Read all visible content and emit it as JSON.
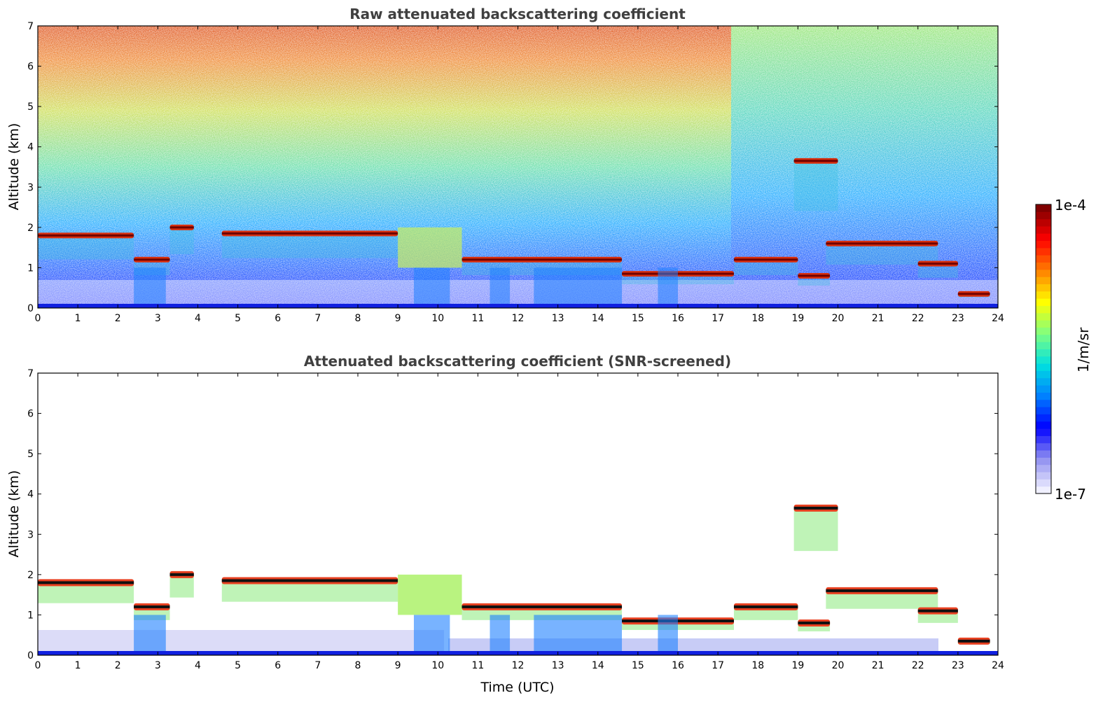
{
  "chart_data": [
    {
      "type": "heatmap",
      "title": "Raw attenuated backscattering coefficient",
      "xlabel": "",
      "ylabel": "Altitude (km)",
      "xlim": [
        0,
        24
      ],
      "ylim": [
        0,
        7
      ],
      "xticks": [
        "0",
        "1",
        "2",
        "3",
        "4",
        "5",
        "6",
        "7",
        "8",
        "9",
        "10",
        "11",
        "12",
        "13",
        "14",
        "15",
        "16",
        "17",
        "18",
        "19",
        "20",
        "21",
        "22",
        "23",
        "24"
      ],
      "yticks": [
        "0",
        "1",
        "2",
        "3",
        "4",
        "5",
        "6",
        "7"
      ],
      "grid": false,
      "cloud_layers": [
        {
          "t_start": 0.0,
          "t_end": 2.4,
          "altitude_km": 1.8
        },
        {
          "t_start": 2.4,
          "t_end": 3.3,
          "altitude_km": 1.2
        },
        {
          "t_start": 3.3,
          "t_end": 3.9,
          "altitude_km": 2.0
        },
        {
          "t_start": 4.6,
          "t_end": 9.0,
          "altitude_km": 1.85
        },
        {
          "t_start": 10.6,
          "t_end": 14.6,
          "altitude_km": 1.2
        },
        {
          "t_start": 14.6,
          "t_end": 17.4,
          "altitude_km": 0.85
        },
        {
          "t_start": 17.4,
          "t_end": 19.0,
          "altitude_km": 1.2
        },
        {
          "t_start": 18.9,
          "t_end": 20.0,
          "altitude_km": 3.65
        },
        {
          "t_start": 19.0,
          "t_end": 19.8,
          "altitude_km": 0.8
        },
        {
          "t_start": 19.7,
          "t_end": 22.5,
          "altitude_km": 1.6
        },
        {
          "t_start": 22.0,
          "t_end": 23.0,
          "altitude_km": 1.1
        },
        {
          "t_start": 23.0,
          "t_end": 23.8,
          "altitude_km": 0.35
        }
      ]
    },
    {
      "type": "heatmap",
      "title": "Attenuated backscattering coefficient (SNR-screened)",
      "xlabel": "Time (UTC)",
      "ylabel": "Altitude (km)",
      "xlim": [
        0,
        24
      ],
      "ylim": [
        0,
        7
      ],
      "xticks": [
        "0",
        "1",
        "2",
        "3",
        "4",
        "5",
        "6",
        "7",
        "8",
        "9",
        "10",
        "11",
        "12",
        "13",
        "14",
        "15",
        "16",
        "17",
        "18",
        "19",
        "20",
        "21",
        "22",
        "23",
        "24"
      ],
      "yticks": [
        "0",
        "1",
        "2",
        "3",
        "4",
        "5",
        "6",
        "7"
      ],
      "grid": false
    }
  ],
  "colorbar": {
    "label": "1/m/sr",
    "max_label": "1e-4",
    "min_label": "1e-7",
    "scale": "log",
    "colors": [
      "#f0f0ff",
      "#9090f0",
      "#0000ff",
      "#0080ff",
      "#00e0e0",
      "#80ff80",
      "#ffff00",
      "#ff8000",
      "#ff0000",
      "#800000"
    ]
  }
}
